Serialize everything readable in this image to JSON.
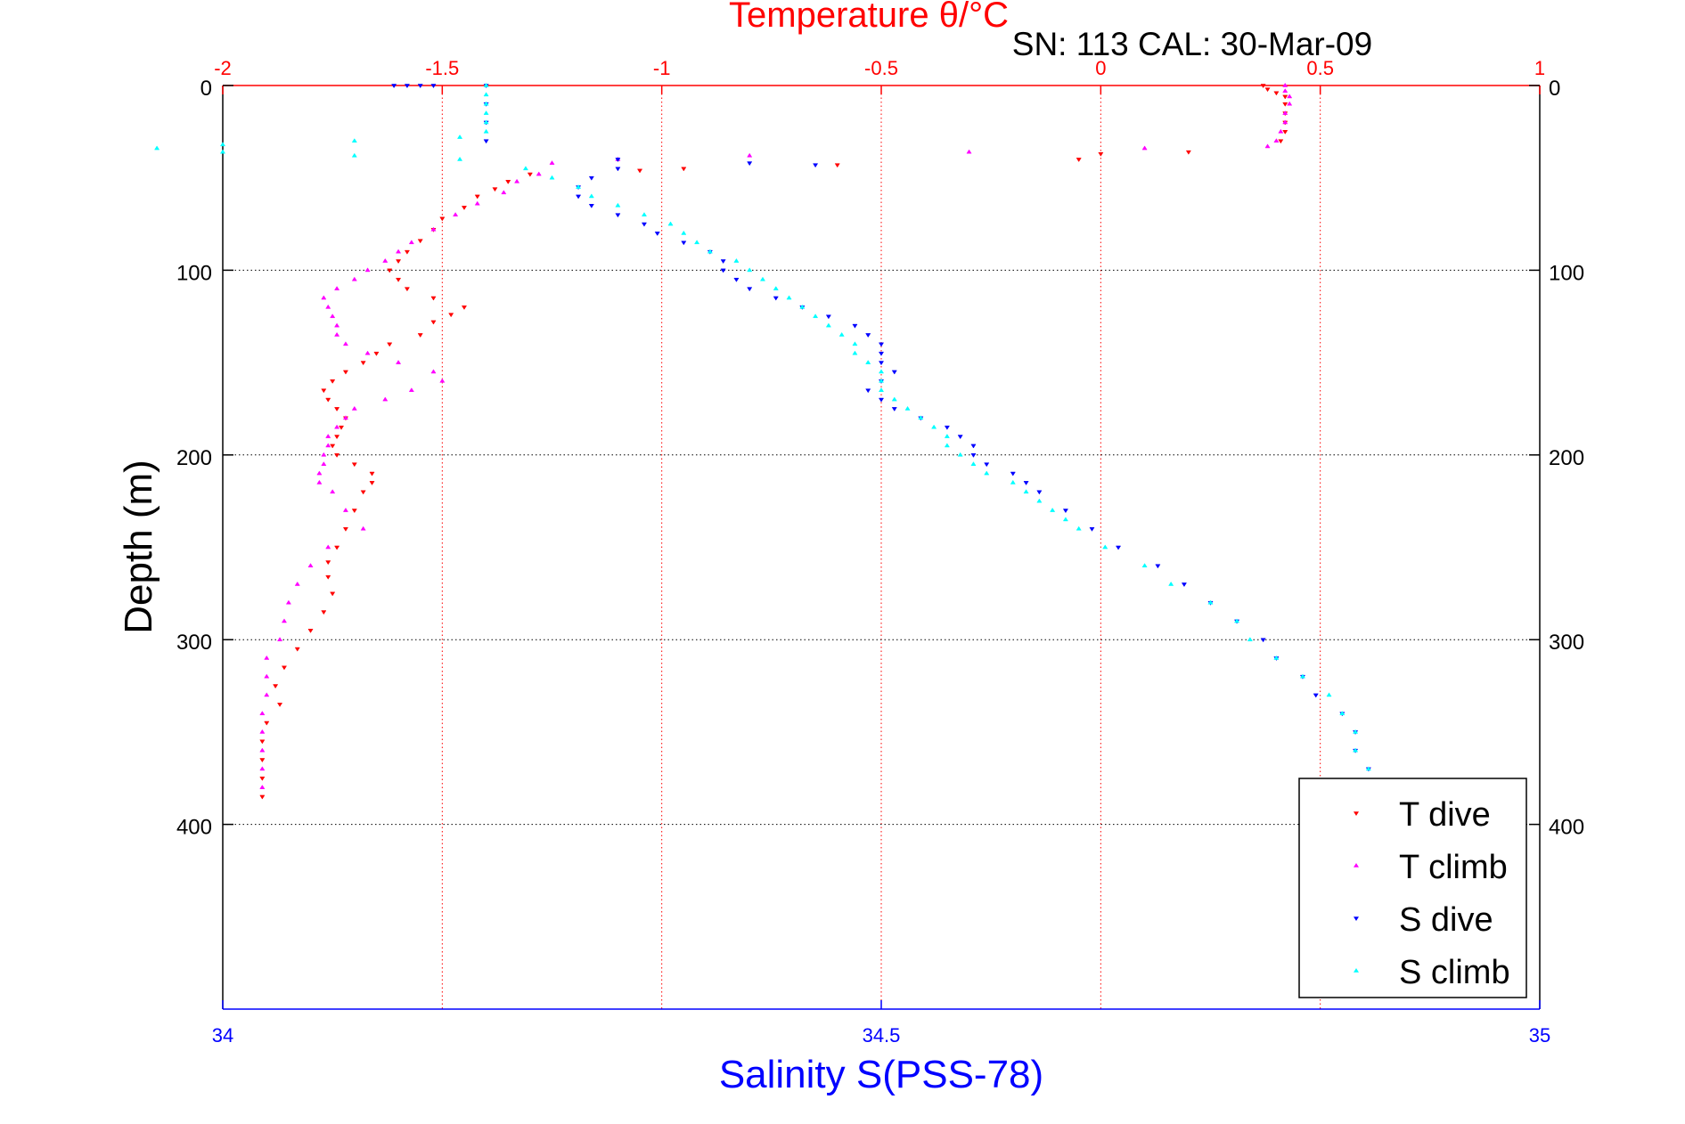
{
  "colors": {
    "temperature_axis": "#ff0000",
    "salinity_axis": "#0000ff",
    "t_dive": "#ff0000",
    "t_climb": "#ff00ff",
    "s_dive": "#0000ff",
    "s_climb": "#00ffff",
    "grid_temp": "#ff0000",
    "grid_depth": "#000000"
  },
  "chart_data": {
    "type": "scatter",
    "title": "Temperature θ/°C",
    "subtitle": "SN: 113  CAL: 30-Mar-09",
    "ylabel": "Depth (m)",
    "xlabel": "Salinity S(PSS-78)",
    "ylim": [
      0,
      500
    ],
    "y_reversed": true,
    "temperature_xlim": [
      -2,
      1
    ],
    "salinity_xlim": [
      34,
      35
    ],
    "temperature_ticks": [
      "-2",
      "-1.5",
      "-1",
      "-0.5",
      "0",
      "0.5",
      "1"
    ],
    "temperature_tick_values": [
      -2,
      -1.5,
      -1,
      -0.5,
      0,
      0.5,
      1
    ],
    "salinity_ticks": [
      "34",
      "34.5",
      "35"
    ],
    "salinity_tick_values": [
      34,
      34.5,
      35
    ],
    "depth_ticks": [
      "0",
      "100",
      "200",
      "300",
      "400"
    ],
    "depth_tick_values": [
      0,
      100,
      200,
      300,
      400
    ],
    "grid": true,
    "legend_position": "bottom-right",
    "series": [
      {
        "name": "T dive",
        "axis": "temperature",
        "marker": "triangle-down",
        "points": [
          [
            0.37,
            0
          ],
          [
            0.38,
            2
          ],
          [
            0.4,
            4
          ],
          [
            0.42,
            6
          ],
          [
            0.42,
            10
          ],
          [
            0.42,
            15
          ],
          [
            0.42,
            20
          ],
          [
            0.42,
            25
          ],
          [
            0.41,
            30
          ],
          [
            0.2,
            36
          ],
          [
            0,
            37
          ],
          [
            -0.05,
            40
          ],
          [
            -0.6,
            43
          ],
          [
            -0.95,
            45
          ],
          [
            -1.05,
            46
          ],
          [
            -1.3,
            48
          ],
          [
            -1.35,
            52
          ],
          [
            -1.38,
            56
          ],
          [
            -1.42,
            60
          ],
          [
            -1.45,
            66
          ],
          [
            -1.5,
            72
          ],
          [
            -1.52,
            78
          ],
          [
            -1.55,
            84
          ],
          [
            -1.58,
            90
          ],
          [
            -1.6,
            95
          ],
          [
            -1.62,
            100
          ],
          [
            -1.6,
            105
          ],
          [
            -1.58,
            110
          ],
          [
            -1.52,
            115
          ],
          [
            -1.45,
            120
          ],
          [
            -1.48,
            124
          ],
          [
            -1.52,
            128
          ],
          [
            -1.55,
            135
          ],
          [
            -1.62,
            140
          ],
          [
            -1.65,
            145
          ],
          [
            -1.68,
            150
          ],
          [
            -1.72,
            155
          ],
          [
            -1.75,
            160
          ],
          [
            -1.77,
            165
          ],
          [
            -1.76,
            170
          ],
          [
            -1.74,
            175
          ],
          [
            -1.72,
            180
          ],
          [
            -1.73,
            185
          ],
          [
            -1.74,
            190
          ],
          [
            -1.75,
            195
          ],
          [
            -1.74,
            200
          ],
          [
            -1.7,
            205
          ],
          [
            -1.66,
            210
          ],
          [
            -1.66,
            215
          ],
          [
            -1.68,
            220
          ],
          [
            -1.7,
            230
          ],
          [
            -1.72,
            240
          ],
          [
            -1.74,
            250
          ],
          [
            -1.76,
            258
          ],
          [
            -1.76,
            266
          ],
          [
            -1.75,
            275
          ],
          [
            -1.77,
            285
          ],
          [
            -1.8,
            295
          ],
          [
            -1.83,
            305
          ],
          [
            -1.86,
            315
          ],
          [
            -1.88,
            325
          ],
          [
            -1.87,
            335
          ],
          [
            -1.9,
            345
          ],
          [
            -1.91,
            355
          ],
          [
            -1.91,
            365
          ],
          [
            -1.91,
            375
          ],
          [
            -1.91,
            385
          ]
        ]
      },
      {
        "name": "T climb",
        "axis": "temperature",
        "marker": "triangle-up",
        "points": [
          [
            0.42,
            0
          ],
          [
            0.42,
            3
          ],
          [
            0.43,
            6
          ],
          [
            0.43,
            10
          ],
          [
            0.42,
            15
          ],
          [
            0.42,
            20
          ],
          [
            0.41,
            25
          ],
          [
            0.4,
            30
          ],
          [
            0.38,
            33
          ],
          [
            0.1,
            34
          ],
          [
            -0.3,
            36
          ],
          [
            -0.8,
            38
          ],
          [
            -1.1,
            40
          ],
          [
            -1.25,
            42
          ],
          [
            -1.28,
            48
          ],
          [
            -1.33,
            52
          ],
          [
            -1.36,
            58
          ],
          [
            -1.42,
            64
          ],
          [
            -1.47,
            70
          ],
          [
            -1.52,
            78
          ],
          [
            -1.57,
            85
          ],
          [
            -1.6,
            90
          ],
          [
            -1.63,
            95
          ],
          [
            -1.67,
            100
          ],
          [
            -1.7,
            105
          ],
          [
            -1.74,
            110
          ],
          [
            -1.77,
            115
          ],
          [
            -1.76,
            120
          ],
          [
            -1.75,
            125
          ],
          [
            -1.74,
            130
          ],
          [
            -1.74,
            135
          ],
          [
            -1.72,
            140
          ],
          [
            -1.67,
            145
          ],
          [
            -1.6,
            150
          ],
          [
            -1.52,
            155
          ],
          [
            -1.5,
            160
          ],
          [
            -1.57,
            165
          ],
          [
            -1.63,
            170
          ],
          [
            -1.7,
            175
          ],
          [
            -1.72,
            180
          ],
          [
            -1.74,
            185
          ],
          [
            -1.76,
            190
          ],
          [
            -1.76,
            195
          ],
          [
            -1.77,
            200
          ],
          [
            -1.77,
            205
          ],
          [
            -1.78,
            210
          ],
          [
            -1.78,
            215
          ],
          [
            -1.75,
            220
          ],
          [
            -1.72,
            230
          ],
          [
            -1.68,
            240
          ],
          [
            -1.76,
            250
          ],
          [
            -1.8,
            260
          ],
          [
            -1.83,
            270
          ],
          [
            -1.85,
            280
          ],
          [
            -1.86,
            290
          ],
          [
            -1.87,
            300
          ],
          [
            -1.9,
            310
          ],
          [
            -1.9,
            320
          ],
          [
            -1.9,
            330
          ],
          [
            -1.91,
            340
          ],
          [
            -1.91,
            350
          ],
          [
            -1.91,
            360
          ],
          [
            -1.91,
            370
          ],
          [
            -1.91,
            380
          ]
        ]
      },
      {
        "name": "S dive",
        "axis": "salinity",
        "marker": "triangle-down",
        "points": [
          [
            34.13,
            0
          ],
          [
            34.14,
            0
          ],
          [
            34.15,
            0
          ],
          [
            34.16,
            0
          ],
          [
            34.2,
            0
          ],
          [
            34.2,
            10
          ],
          [
            34.2,
            20
          ],
          [
            34.2,
            30
          ],
          [
            34.3,
            40
          ],
          [
            34.4,
            42
          ],
          [
            34.45,
            43
          ],
          [
            34.3,
            45
          ],
          [
            34.28,
            50
          ],
          [
            34.27,
            55
          ],
          [
            34.27,
            60
          ],
          [
            34.28,
            65
          ],
          [
            34.3,
            70
          ],
          [
            34.32,
            75
          ],
          [
            34.33,
            80
          ],
          [
            34.35,
            85
          ],
          [
            34.37,
            90
          ],
          [
            34.38,
            95
          ],
          [
            34.38,
            100
          ],
          [
            34.39,
            105
          ],
          [
            34.4,
            110
          ],
          [
            34.42,
            115
          ],
          [
            34.44,
            120
          ],
          [
            34.46,
            125
          ],
          [
            34.48,
            130
          ],
          [
            34.49,
            135
          ],
          [
            34.5,
            140
          ],
          [
            34.5,
            145
          ],
          [
            34.5,
            150
          ],
          [
            34.51,
            155
          ],
          [
            34.5,
            160
          ],
          [
            34.49,
            165
          ],
          [
            34.5,
            170
          ],
          [
            34.51,
            175
          ],
          [
            34.53,
            180
          ],
          [
            34.55,
            185
          ],
          [
            34.56,
            190
          ],
          [
            34.57,
            195
          ],
          [
            34.57,
            200
          ],
          [
            34.58,
            205
          ],
          [
            34.6,
            210
          ],
          [
            34.61,
            215
          ],
          [
            34.62,
            220
          ],
          [
            34.64,
            230
          ],
          [
            34.66,
            240
          ],
          [
            34.68,
            250
          ],
          [
            34.71,
            260
          ],
          [
            34.73,
            270
          ],
          [
            34.75,
            280
          ],
          [
            34.77,
            290
          ],
          [
            34.79,
            300
          ],
          [
            34.8,
            310
          ],
          [
            34.82,
            320
          ],
          [
            34.83,
            330
          ],
          [
            34.85,
            340
          ],
          [
            34.86,
            350
          ],
          [
            34.86,
            360
          ],
          [
            34.87,
            370
          ],
          [
            34.87,
            380
          ],
          [
            34.87,
            385
          ]
        ]
      },
      {
        "name": "S climb",
        "axis": "salinity",
        "marker": "triangle-up",
        "points": [
          [
            34.2,
            0
          ],
          [
            34.2,
            5
          ],
          [
            34.2,
            10
          ],
          [
            34.2,
            15
          ],
          [
            34.2,
            20
          ],
          [
            34.2,
            25
          ],
          [
            34.18,
            28
          ],
          [
            34.1,
            30
          ],
          [
            34.0,
            32
          ],
          [
            33.95,
            34
          ],
          [
            34.0,
            36
          ],
          [
            34.1,
            38
          ],
          [
            34.18,
            40
          ],
          [
            34.23,
            45
          ],
          [
            34.25,
            50
          ],
          [
            34.27,
            55
          ],
          [
            34.28,
            60
          ],
          [
            34.3,
            65
          ],
          [
            34.32,
            70
          ],
          [
            34.34,
            75
          ],
          [
            34.35,
            80
          ],
          [
            34.36,
            85
          ],
          [
            34.37,
            90
          ],
          [
            34.39,
            95
          ],
          [
            34.4,
            100
          ],
          [
            34.41,
            105
          ],
          [
            34.42,
            110
          ],
          [
            34.43,
            115
          ],
          [
            34.44,
            120
          ],
          [
            34.45,
            125
          ],
          [
            34.46,
            130
          ],
          [
            34.47,
            135
          ],
          [
            34.48,
            140
          ],
          [
            34.48,
            145
          ],
          [
            34.49,
            150
          ],
          [
            34.5,
            155
          ],
          [
            34.5,
            160
          ],
          [
            34.5,
            165
          ],
          [
            34.51,
            170
          ],
          [
            34.52,
            175
          ],
          [
            34.53,
            180
          ],
          [
            34.54,
            185
          ],
          [
            34.55,
            190
          ],
          [
            34.55,
            195
          ],
          [
            34.56,
            200
          ],
          [
            34.57,
            205
          ],
          [
            34.58,
            210
          ],
          [
            34.6,
            215
          ],
          [
            34.61,
            220
          ],
          [
            34.62,
            225
          ],
          [
            34.63,
            230
          ],
          [
            34.64,
            235
          ],
          [
            34.65,
            240
          ],
          [
            34.67,
            250
          ],
          [
            34.7,
            260
          ],
          [
            34.72,
            270
          ],
          [
            34.75,
            280
          ],
          [
            34.77,
            290
          ],
          [
            34.78,
            300
          ],
          [
            34.8,
            310
          ],
          [
            34.82,
            320
          ],
          [
            34.84,
            330
          ],
          [
            34.85,
            340
          ],
          [
            34.86,
            350
          ],
          [
            34.86,
            360
          ],
          [
            34.87,
            370
          ],
          [
            34.87,
            380
          ],
          [
            34.88,
            385
          ]
        ]
      }
    ]
  }
}
